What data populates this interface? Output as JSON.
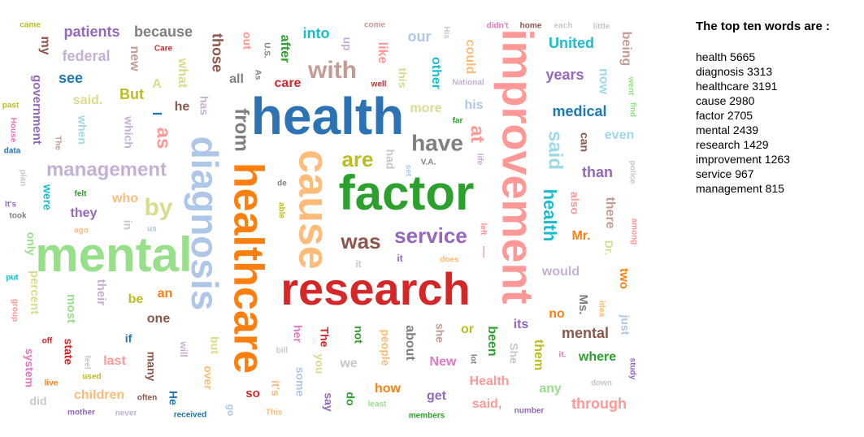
{
  "panel": {
    "heading": "The top ten words are :",
    "entries": [
      {
        "word": "health",
        "count": 5665
      },
      {
        "word": "diagnosis",
        "count": 3313
      },
      {
        "word": "healthcare",
        "count": 3191
      },
      {
        "word": "cause",
        "count": 2980
      },
      {
        "word": "factor",
        "count": 2705
      },
      {
        "word": "mental",
        "count": 2439
      },
      {
        "word": "research",
        "count": 1429
      },
      {
        "word": "improvement",
        "count": 1263
      },
      {
        "word": "service",
        "count": 967
      },
      {
        "word": "management",
        "count": 815
      }
    ]
  },
  "chart_data": {
    "type": "wordcloud",
    "words": [
      {
        "text": "health",
        "color": "#2b73b4"
      },
      {
        "text": "diagnosis",
        "color": "#aec7e8"
      },
      {
        "text": "healthcare",
        "color": "#ff7f0e"
      },
      {
        "text": "cause",
        "color": "#ffbb78"
      },
      {
        "text": "factor",
        "color": "#2ca02c"
      },
      {
        "text": "mental",
        "color": "#98df8a"
      },
      {
        "text": "research",
        "color": "#d62728"
      },
      {
        "text": "improvement",
        "color": "#ff9896"
      },
      {
        "text": "service",
        "color": "#9467bd"
      },
      {
        "text": "management",
        "color": "#c5b0d5"
      },
      {
        "text": "was",
        "color": "#8c564b"
      },
      {
        "text": "with",
        "color": "#c49c94"
      },
      {
        "text": "have",
        "color": "#7f7f7f"
      },
      {
        "text": "are",
        "color": "#bcbd22"
      },
      {
        "text": "from",
        "color": "#7f7f7f"
      },
      {
        "text": "by",
        "color": "#dbdb8d"
      },
      {
        "text": "as",
        "color": "#ff9896"
      },
      {
        "text": "said",
        "color": "#9edae5"
      },
      {
        "text": "at",
        "color": "#ff9896"
      },
      {
        "text": "health",
        "color": "#17becf"
      },
      {
        "text": "patients",
        "color": "#9467bd"
      },
      {
        "text": "because",
        "color": "#7f7f7f"
      },
      {
        "text": "those",
        "color": "#8c564b"
      },
      {
        "text": "into",
        "color": "#17becf"
      },
      {
        "text": "our",
        "color": "#aec7e8"
      },
      {
        "text": "United",
        "color": "#17becf"
      },
      {
        "text": "being",
        "color": "#c49c94"
      },
      {
        "text": "federal",
        "color": "#c5b0d5"
      },
      {
        "text": "new",
        "color": "#c49c94"
      },
      {
        "text": "what",
        "color": "#dbdb8d"
      },
      {
        "text": "after",
        "color": "#2ca02c"
      },
      {
        "text": "like",
        "color": "#ff9896"
      },
      {
        "text": "other",
        "color": "#17becf"
      },
      {
        "text": "could",
        "color": "#ffbb78"
      },
      {
        "text": "years",
        "color": "#9467bd"
      },
      {
        "text": "now",
        "color": "#9edae5"
      },
      {
        "text": "my",
        "color": "#8c564b"
      },
      {
        "text": "see",
        "color": "#1f77b4"
      },
      {
        "text": "government",
        "color": "#9467bd"
      },
      {
        "text": "said.",
        "color": "#dbdb8d"
      },
      {
        "text": "But",
        "color": "#bcbd22"
      },
      {
        "text": "A",
        "color": "#dbdb8d"
      },
      {
        "text": "he",
        "color": "#8c564b"
      },
      {
        "text": "has",
        "color": "#c5b0d5"
      },
      {
        "text": "all",
        "color": "#7f7f7f"
      },
      {
        "text": "care",
        "color": "#d62728"
      },
      {
        "text": "this",
        "color": "#dbdb8d"
      },
      {
        "text": "more",
        "color": "#dbdb8d"
      },
      {
        "text": "his",
        "color": "#aec7e8"
      },
      {
        "text": "medical",
        "color": "#1f77b4"
      },
      {
        "text": "even",
        "color": "#9edae5"
      },
      {
        "text": "can",
        "color": "#8c564b"
      },
      {
        "text": "than",
        "color": "#9467bd"
      },
      {
        "text": "when",
        "color": "#9edae5"
      },
      {
        "text": "which",
        "color": "#c5b0d5"
      },
      {
        "text": "who",
        "color": "#ffbb78"
      },
      {
        "text": "they",
        "color": "#9467bd"
      },
      {
        "text": "were",
        "color": "#17becf"
      },
      {
        "text": "only",
        "color": "#98df8a"
      },
      {
        "text": "percent",
        "color": "#dbdb8d"
      },
      {
        "text": "most",
        "color": "#98df8a"
      },
      {
        "text": "their",
        "color": "#c5b0d5"
      },
      {
        "text": "be",
        "color": "#bcbd22"
      },
      {
        "text": "an",
        "color": "#ff7f0e"
      },
      {
        "text": "one",
        "color": "#8c564b"
      },
      {
        "text": "also",
        "color": "#ff9896"
      },
      {
        "text": "there",
        "color": "#c49c94"
      },
      {
        "text": "Mr.",
        "color": "#ff7f0e"
      },
      {
        "text": "Dr.",
        "color": "#dbdb8d"
      },
      {
        "text": "would",
        "color": "#c5b0d5"
      },
      {
        "text": "two",
        "color": "#ff7f0e"
      },
      {
        "text": "Ms.",
        "color": "#7f7f7f"
      },
      {
        "text": "no",
        "color": "#ff7f0e"
      },
      {
        "text": "just",
        "color": "#aec7e8"
      },
      {
        "text": "mental",
        "color": "#8c564b"
      },
      {
        "text": "where",
        "color": "#2ca02c"
      },
      {
        "text": "its",
        "color": "#9467bd"
      },
      {
        "text": "them",
        "color": "#bcbd22"
      },
      {
        "text": "or",
        "color": "#bcbd22"
      },
      {
        "text": "been",
        "color": "#2ca02c"
      },
      {
        "text": "She",
        "color": "#c7c7c7"
      },
      {
        "text": "about",
        "color": "#7f7f7f"
      },
      {
        "text": "people",
        "color": "#ffbb78"
      },
      {
        "text": "she",
        "color": "#c49c94"
      },
      {
        "text": "New",
        "color": "#e377c2"
      },
      {
        "text": "not",
        "color": "#2ca02c"
      },
      {
        "text": "The",
        "color": "#d62728"
      },
      {
        "text": "her",
        "color": "#e377c2"
      },
      {
        "text": "you",
        "color": "#dbdb8d"
      },
      {
        "text": "we",
        "color": "#c7c7c7"
      },
      {
        "text": "how",
        "color": "#ff7f0e"
      },
      {
        "text": "Health",
        "color": "#ff9896"
      },
      {
        "text": "any",
        "color": "#98df8a"
      },
      {
        "text": "get",
        "color": "#9467bd"
      },
      {
        "text": "said,",
        "color": "#ff9896"
      },
      {
        "text": "through",
        "color": "#ff9896"
      },
      {
        "text": "system",
        "color": "#e377c2"
      },
      {
        "text": "state",
        "color": "#d62728"
      },
      {
        "text": "last",
        "color": "#ff9896"
      },
      {
        "text": "many",
        "color": "#8c564b"
      },
      {
        "text": "if",
        "color": "#1f77b4"
      },
      {
        "text": "will",
        "color": "#c5b0d5"
      },
      {
        "text": "but",
        "color": "#dbdb8d"
      },
      {
        "text": "over",
        "color": "#ffbb78"
      },
      {
        "text": "children",
        "color": "#ffbb78"
      },
      {
        "text": "He",
        "color": "#1f77b4"
      },
      {
        "text": "so",
        "color": "#d62728"
      },
      {
        "text": "it's",
        "color": "#ffbb78"
      },
      {
        "text": "some",
        "color": "#aec7e8"
      },
      {
        "text": "say",
        "color": "#9467bd"
      },
      {
        "text": "do",
        "color": "#2ca02c"
      },
      {
        "text": "did",
        "color": "#c7c7c7"
      },
      {
        "text": "go",
        "color": "#aec7e8"
      },
      {
        "text": "I",
        "color": "#1f77b4"
      },
      {
        "text": "up",
        "color": "#c5b0d5"
      },
      {
        "text": "out",
        "color": "#ff9896"
      },
      {
        "text": "it",
        "color": "#c7c7c7"
      },
      {
        "text": "it",
        "color": "#9467bd"
      },
      {
        "text": "—",
        "color": "#ff9896"
      },
      {
        "text": "had",
        "color": "#c7c7c7"
      },
      {
        "text": "in",
        "color": "#c7c7c7"
      },
      {
        "text": "came",
        "color": "#bcbd22"
      },
      {
        "text": "come",
        "color": "#c49c94"
      },
      {
        "text": "didn't",
        "color": "#e377c2"
      },
      {
        "text": "home",
        "color": "#8c564b"
      },
      {
        "text": "each",
        "color": "#c7c7c7"
      },
      {
        "text": "little",
        "color": "#c7c7c7"
      },
      {
        "text": "Care",
        "color": "#d62728"
      },
      {
        "text": "U.S.",
        "color": "#7f7f7f"
      },
      {
        "text": "His",
        "color": "#c7c7c7"
      },
      {
        "text": "National",
        "color": "#c5b0d5"
      },
      {
        "text": "well",
        "color": "#d62728"
      },
      {
        "text": "far",
        "color": "#2ca02c"
      },
      {
        "text": "past",
        "color": "#bcbd22"
      },
      {
        "text": "House",
        "color": "#e377c2"
      },
      {
        "text": "data",
        "color": "#1f77b4"
      },
      {
        "text": "The",
        "color": "#c49c94"
      },
      {
        "text": "plan",
        "color": "#c7c7c7"
      },
      {
        "text": "It's",
        "color": "#9467bd"
      },
      {
        "text": "felt",
        "color": "#2ca02c"
      },
      {
        "text": "took",
        "color": "#7f7f7f"
      },
      {
        "text": "us",
        "color": "#aec7e8"
      },
      {
        "text": "ago",
        "color": "#ffbb78"
      },
      {
        "text": "put",
        "color": "#17becf"
      },
      {
        "text": "group",
        "color": "#ff9896"
      },
      {
        "text": "off",
        "color": "#d62728"
      },
      {
        "text": "feel",
        "color": "#c7c7c7"
      },
      {
        "text": "used",
        "color": "#bcbd22"
      },
      {
        "text": "live",
        "color": "#ff7f0e"
      },
      {
        "text": "often",
        "color": "#8c564b"
      },
      {
        "text": "mother",
        "color": "#9467bd"
      },
      {
        "text": "never",
        "color": "#c5b0d5"
      },
      {
        "text": "received",
        "color": "#1f77b4"
      },
      {
        "text": "This",
        "color": "#ffbb78"
      },
      {
        "text": "least",
        "color": "#98df8a"
      },
      {
        "text": "members",
        "color": "#2ca02c"
      },
      {
        "text": "number",
        "color": "#9467bd"
      },
      {
        "text": "down",
        "color": "#c7c7c7"
      },
      {
        "text": "study",
        "color": "#9467bd"
      },
      {
        "text": "it.",
        "color": "#e377c2"
      },
      {
        "text": "lot",
        "color": "#7f7f7f"
      },
      {
        "text": "bill",
        "color": "#c7c7c7"
      },
      {
        "text": "de",
        "color": "#7f7f7f"
      },
      {
        "text": "able",
        "color": "#bcbd22"
      },
      {
        "text": "life",
        "color": "#c5b0d5"
      },
      {
        "text": "left",
        "color": "#ff9896"
      },
      {
        "text": "does",
        "color": "#ffbb78"
      },
      {
        "text": "find",
        "color": "#98df8a"
      },
      {
        "text": "went",
        "color": "#98df8a"
      },
      {
        "text": "police",
        "color": "#c7c7c7"
      },
      {
        "text": "among",
        "color": "#ff9896"
      },
      {
        "text": "idea",
        "color": "#ffbb78"
      },
      {
        "text": "V.A.",
        "color": "#7f7f7f"
      },
      {
        "text": "set",
        "color": "#aec7e8"
      },
      {
        "text": "As",
        "color": "#7f7f7f"
      }
    ]
  }
}
